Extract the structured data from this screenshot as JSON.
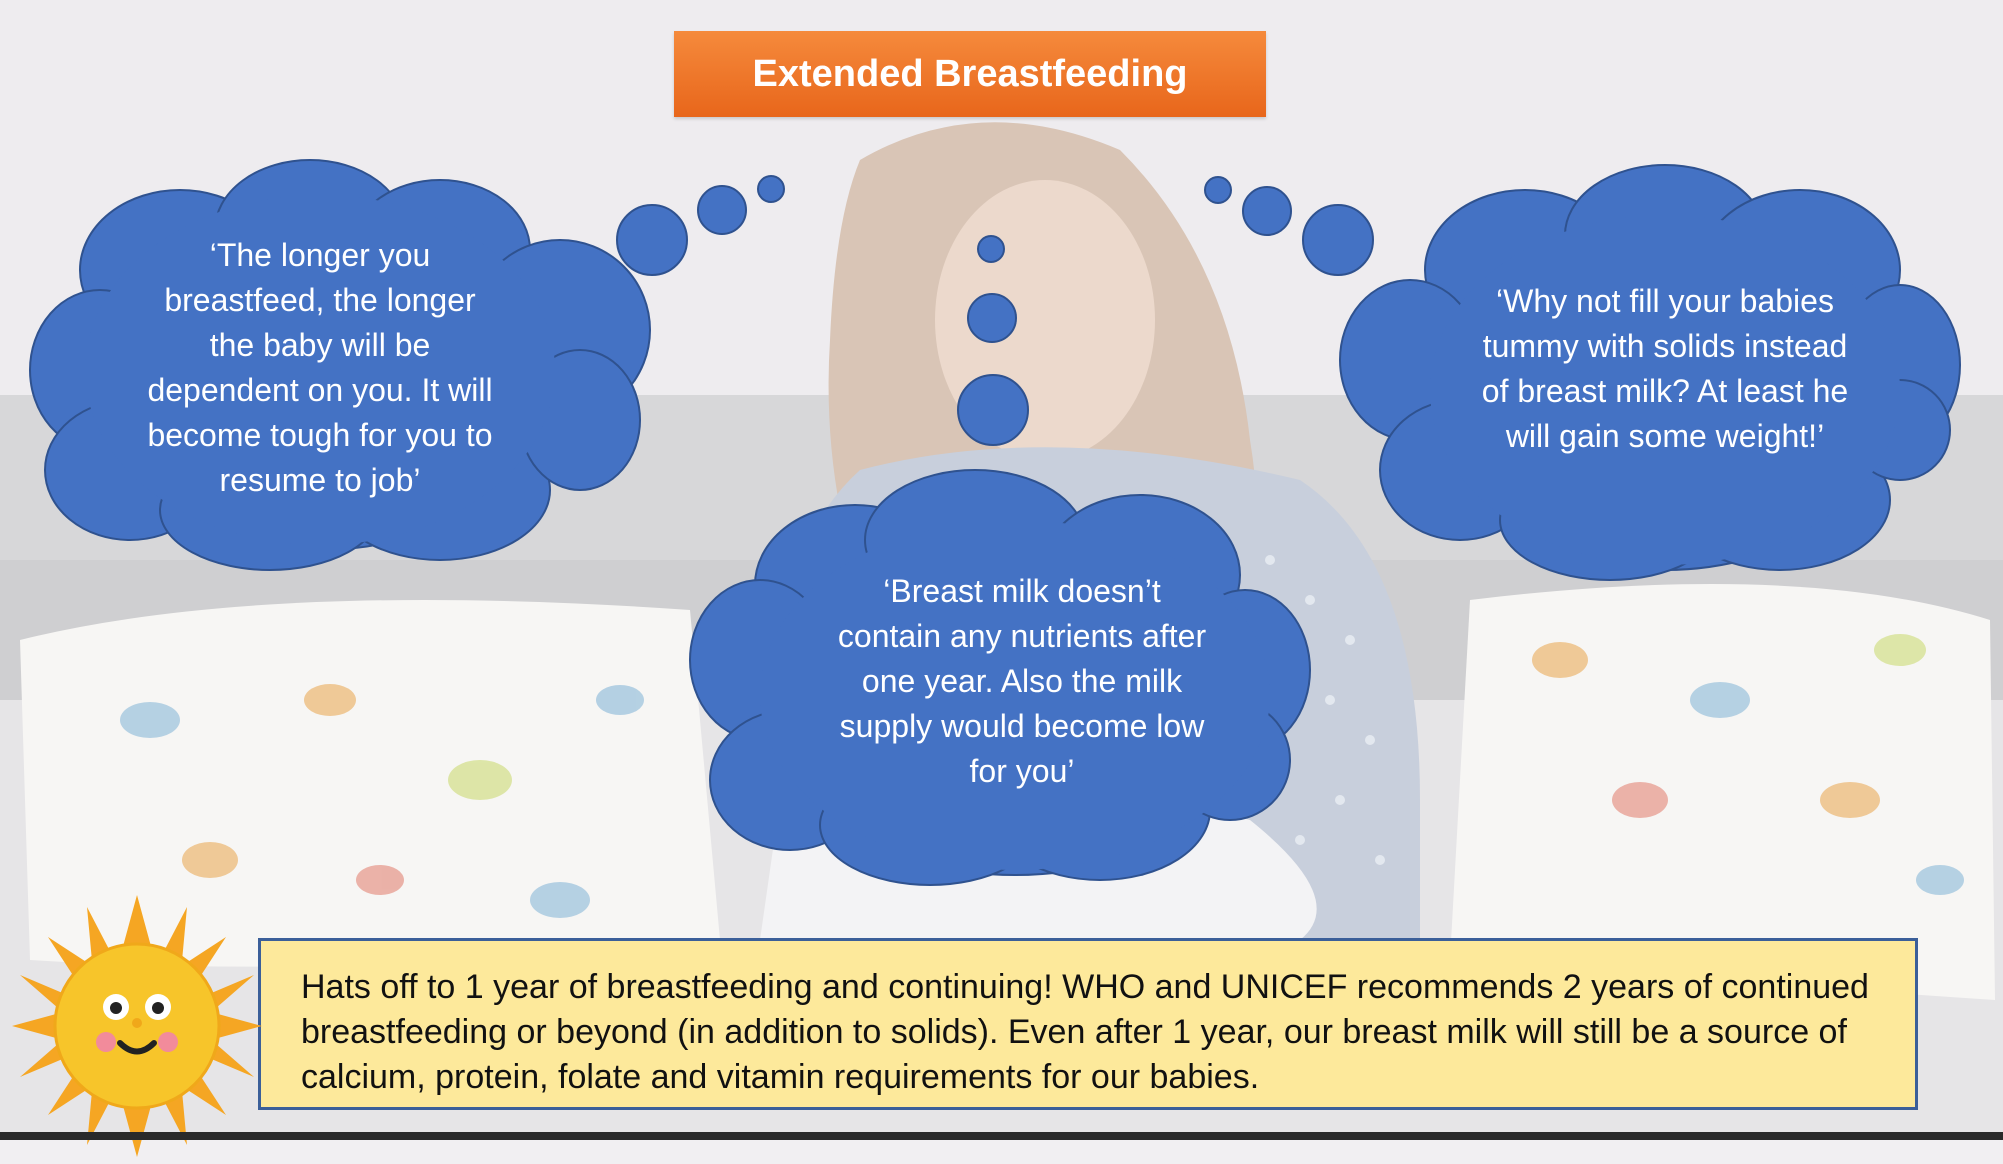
{
  "title": "Extended Breastfeeding",
  "thoughts": {
    "left": "‘The longer you breastfeed, the longer the baby will be dependent on you. It will become tough for you to resume to job’",
    "center": "‘Breast milk doesn’t contain any nutrients after one year. Also the milk supply would become low for you’",
    "right": "‘Why not fill your babies tummy with solids instead of breast milk? At least he will gain some weight!’"
  },
  "info": "Hats off to 1 year of breastfeeding and continuing! WHO and UNICEF recommends 2 years of continued breastfeeding or beyond (in addition to solids). Even after 1 year, our breast milk will still be a source of calcium, protein, folate and vitamin requirements for our babies.",
  "colors": {
    "cloud": "#4472c4",
    "cloud_outline": "#2f528f",
    "banner": "#ee7427",
    "info_box": "#fde99b",
    "info_border": "#3b5f99",
    "sun": "#f7c52a"
  },
  "icons": {
    "sun": "smiling-sun-icon"
  }
}
